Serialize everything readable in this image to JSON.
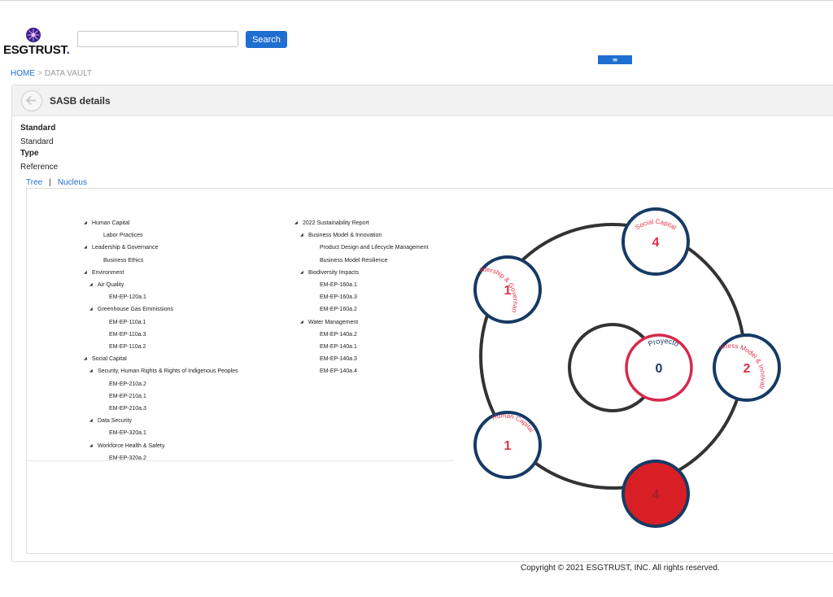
{
  "brand": {
    "name": "ESGTRUST",
    "dot": ".",
    "logo_icon": "sunburst-logo-icon",
    "accent": "#3b1f8c"
  },
  "search": {
    "placeholder": "",
    "value": "",
    "button_label": "Search"
  },
  "menu": {
    "icon": "hamburger-icon",
    "glyph": "≡"
  },
  "breadcrumb": {
    "home": "HOME",
    "separator": ">",
    "current": "DATA VAULT"
  },
  "panel": {
    "title": "SASB details",
    "back_icon": "arrow-left-icon"
  },
  "fields": [
    {
      "label": "Standard",
      "value": "Standard"
    },
    {
      "label": "Type",
      "value": "Reference"
    }
  ],
  "tabs": {
    "tree": "Tree",
    "separator": "|",
    "nucleus": "Nucleus"
  },
  "tree_left": [
    {
      "label": "Human Capital",
      "caret": true,
      "level": 0
    },
    {
      "label": "Labor Practices",
      "caret": false,
      "level": 1
    },
    {
      "label": "Leadership & Governance",
      "caret": true,
      "level": 0
    },
    {
      "label": "Business Ethics",
      "caret": false,
      "level": 1
    },
    {
      "label": "Environment",
      "caret": true,
      "level": 0
    },
    {
      "label": "Air Quality",
      "caret": true,
      "level": 1
    },
    {
      "label": "EM-EP-120a.1",
      "caret": false,
      "level": 2
    },
    {
      "label": "Greenhouse Gas Emmissions",
      "caret": true,
      "level": 1
    },
    {
      "label": "EM-EP-110a.1",
      "caret": false,
      "level": 2
    },
    {
      "label": "EM-EP-110a.3",
      "caret": false,
      "level": 2
    },
    {
      "label": "EM-EP-110a.2",
      "caret": false,
      "level": 2
    },
    {
      "label": "Social Capital",
      "caret": true,
      "level": 0
    },
    {
      "label": "Security, Human Rights & Rights of Indigenous Peoples",
      "caret": true,
      "level": 1
    },
    {
      "label": "EM-EP-210a.2",
      "caret": false,
      "level": 2
    },
    {
      "label": "EM-EP-210a.1",
      "caret": false,
      "level": 2
    },
    {
      "label": "EM-EP-210a.3",
      "caret": false,
      "level": 2
    },
    {
      "label": "Data Security",
      "caret": true,
      "level": 1
    },
    {
      "label": "EM-EP-320a.1",
      "caret": false,
      "level": 2
    },
    {
      "label": "Workforce Health & Safety",
      "caret": true,
      "level": 1
    },
    {
      "label": "EM-EP-320a.2",
      "caret": false,
      "level": 2
    }
  ],
  "tree_right": [
    {
      "label": "2022 Sustainability Report",
      "caret": true,
      "level": 0
    },
    {
      "label": "Business Model & Innovation",
      "caret": true,
      "level": 1
    },
    {
      "label": "Product Design and Lifecycle Management",
      "caret": false,
      "level": 2
    },
    {
      "label": "Business Model Resilience",
      "caret": false,
      "level": 2
    },
    {
      "label": "Biodiversity Impacts",
      "caret": true,
      "level": 1
    },
    {
      "label": "EM-EP-160a.1",
      "caret": false,
      "level": 2
    },
    {
      "label": "EM-EP-160a.3",
      "caret": false,
      "level": 2
    },
    {
      "label": "EM-EP-160a.2",
      "caret": false,
      "level": 2
    },
    {
      "label": "Water Management",
      "caret": true,
      "level": 1
    },
    {
      "label": "EM-EP-140a.2",
      "caret": false,
      "level": 2
    },
    {
      "label": "EM-EP-140a.1",
      "caret": false,
      "level": 2
    },
    {
      "label": "EM-EP-140a.3",
      "caret": false,
      "level": 2
    },
    {
      "label": "EM-EP-140a.4",
      "caret": false,
      "level": 2
    }
  ],
  "nucleus": {
    "center": {
      "label": "Proyecto",
      "count": "0"
    },
    "nodes": [
      {
        "label": "Social Capital",
        "count": "4",
        "filled": false
      },
      {
        "label": "Leadership & Governance",
        "count": "1",
        "filled": false
      },
      {
        "label": "Business Model & Innovation",
        "count": "2",
        "filled": false
      },
      {
        "label": "Human Capital",
        "count": "1",
        "filled": false
      },
      {
        "label": "",
        "count": "4",
        "filled": true
      }
    ],
    "colors": {
      "ring": "#333333",
      "node_border": "#163a63",
      "text": "#e0304a",
      "filled": "#d81f26",
      "center_border": "#d8274a"
    }
  },
  "footer": {
    "copyright": "Copyright © 2021 ESGTRUST, INC. All rights reserved."
  }
}
